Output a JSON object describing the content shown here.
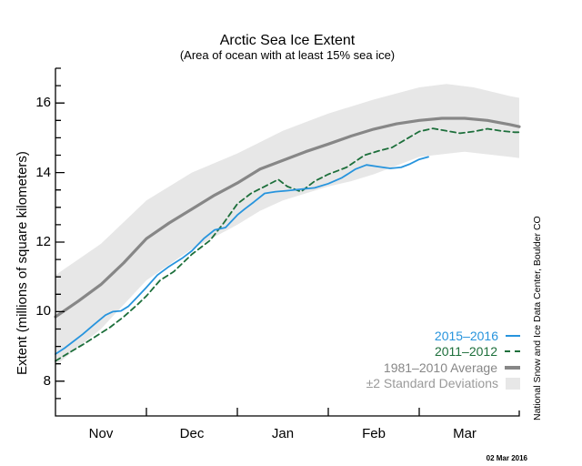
{
  "chart": {
    "title": "Arctic Sea Ice Extent",
    "subtitle": "(Area of ocean with at least 15% sea ice)",
    "y_label": "Extent (millions of square kilometers)",
    "credit": "National Snow and Ice Data Center, Boulder CO",
    "date_stamp": "02 Mar 2016"
  },
  "legend": {
    "items": [
      {
        "label": "2015–2016",
        "color": "#2794dd",
        "sample": "line"
      },
      {
        "label": "2011–2012",
        "color": "#1d6f3b",
        "sample": "dashes"
      },
      {
        "label": "1981–2010 Average",
        "color": "#878787",
        "sample": "thick"
      },
      {
        "label": "±2 Standard Deviations",
        "color": "#9a9a9a",
        "sample": "box"
      }
    ]
  },
  "chart_data": {
    "type": "line",
    "title": "Arctic Sea Ice Extent",
    "subtitle": "(Area of ocean with at least 15% sea ice)",
    "ylabel": "Extent (millions of square kilometers)",
    "ylim": [
      7,
      17
    ],
    "y_major_ticks": [
      8,
      10,
      12,
      14,
      16
    ],
    "y_minor_step": 0.5,
    "x_month_labels": [
      "Nov",
      "Dec",
      "Jan",
      "Feb",
      "Mar"
    ],
    "x_note": "x unit = months since Nov 1 2015 (0=Nov1, 1=Dec1, 2=Jan1, 3=Feb1, 4=Mar1)",
    "x_domain": [
      0,
      5.1
    ],
    "grid": false,
    "band": {
      "name": "±2 Standard Deviations",
      "color": "#e7e7e7",
      "upper": [
        [
          0,
          11.05
        ],
        [
          0.5,
          11.95
        ],
        [
          1,
          13.2
        ],
        [
          1.5,
          14.0
        ],
        [
          2,
          14.55
        ],
        [
          2.5,
          15.2
        ],
        [
          3,
          15.7
        ],
        [
          3.5,
          16.1
        ],
        [
          4,
          16.45
        ],
        [
          4.3,
          16.55
        ],
        [
          4.6,
          16.45
        ],
        [
          5,
          16.2
        ],
        [
          5.1,
          16.15
        ]
      ],
      "lower": [
        [
          0,
          8.45
        ],
        [
          0.5,
          9.5
        ],
        [
          1,
          10.9
        ],
        [
          1.5,
          11.8
        ],
        [
          2,
          12.5
        ],
        [
          2.25,
          12.9
        ],
        [
          2.5,
          13.2
        ],
        [
          2.75,
          13.4
        ],
        [
          3,
          13.6
        ],
        [
          3.25,
          13.75
        ],
        [
          3.5,
          13.95
        ],
        [
          3.75,
          14.2
        ],
        [
          4,
          14.45
        ],
        [
          4.5,
          14.6
        ],
        [
          5,
          14.45
        ],
        [
          5.1,
          14.42
        ]
      ]
    },
    "series": [
      {
        "name": "1981–2010 Average",
        "color": "#878787",
        "style": "solid",
        "width": 3.2,
        "points": [
          [
            0,
            9.85
          ],
          [
            0.25,
            10.3
          ],
          [
            0.5,
            10.78
          ],
          [
            0.75,
            11.4
          ],
          [
            1,
            12.1
          ],
          [
            1.25,
            12.55
          ],
          [
            1.5,
            12.95
          ],
          [
            1.75,
            13.35
          ],
          [
            2,
            13.7
          ],
          [
            2.25,
            14.1
          ],
          [
            2.5,
            14.35
          ],
          [
            2.75,
            14.6
          ],
          [
            3,
            14.82
          ],
          [
            3.25,
            15.05
          ],
          [
            3.5,
            15.25
          ],
          [
            3.75,
            15.4
          ],
          [
            4,
            15.5
          ],
          [
            4.25,
            15.56
          ],
          [
            4.5,
            15.56
          ],
          [
            4.75,
            15.5
          ],
          [
            5,
            15.38
          ],
          [
            5.1,
            15.32
          ]
        ]
      },
      {
        "name": "2011–2012",
        "color": "#1d6f3b",
        "style": "dashed",
        "width": 1.8,
        "points": [
          [
            0,
            8.58
          ],
          [
            0.15,
            8.82
          ],
          [
            0.3,
            9.05
          ],
          [
            0.45,
            9.3
          ],
          [
            0.6,
            9.55
          ],
          [
            0.75,
            9.85
          ],
          [
            0.9,
            10.2
          ],
          [
            1,
            10.45
          ],
          [
            1.15,
            10.9
          ],
          [
            1.3,
            11.15
          ],
          [
            1.5,
            11.65
          ],
          [
            1.7,
            12.05
          ],
          [
            1.85,
            12.55
          ],
          [
            2,
            13.1
          ],
          [
            2.15,
            13.4
          ],
          [
            2.3,
            13.6
          ],
          [
            2.45,
            13.8
          ],
          [
            2.55,
            13.6
          ],
          [
            2.7,
            13.45
          ],
          [
            2.85,
            13.75
          ],
          [
            3,
            13.95
          ],
          [
            3.2,
            14.15
          ],
          [
            3.4,
            14.5
          ],
          [
            3.55,
            14.62
          ],
          [
            3.7,
            14.72
          ],
          [
            3.85,
            14.95
          ],
          [
            4,
            15.18
          ],
          [
            4.15,
            15.27
          ],
          [
            4.3,
            15.2
          ],
          [
            4.45,
            15.13
          ],
          [
            4.6,
            15.18
          ],
          [
            4.75,
            15.26
          ],
          [
            4.9,
            15.2
          ],
          [
            5.05,
            15.16
          ],
          [
            5.1,
            15.16
          ]
        ]
      },
      {
        "name": "2015–2016",
        "color": "#2794dd",
        "style": "solid",
        "width": 1.8,
        "points": [
          [
            0,
            8.78
          ],
          [
            0.1,
            8.95
          ],
          [
            0.2,
            9.15
          ],
          [
            0.3,
            9.35
          ],
          [
            0.42,
            9.62
          ],
          [
            0.55,
            9.9
          ],
          [
            0.63,
            10.0
          ],
          [
            0.72,
            10.02
          ],
          [
            0.8,
            10.15
          ],
          [
            0.9,
            10.42
          ],
          [
            1,
            10.7
          ],
          [
            1.12,
            11.05
          ],
          [
            1.25,
            11.3
          ],
          [
            1.4,
            11.55
          ],
          [
            1.5,
            11.75
          ],
          [
            1.63,
            12.1
          ],
          [
            1.75,
            12.35
          ],
          [
            1.87,
            12.42
          ],
          [
            2,
            12.78
          ],
          [
            2.08,
            12.95
          ],
          [
            2.18,
            13.15
          ],
          [
            2.3,
            13.4
          ],
          [
            2.42,
            13.45
          ],
          [
            2.55,
            13.48
          ],
          [
            2.7,
            13.52
          ],
          [
            2.85,
            13.56
          ],
          [
            3,
            13.68
          ],
          [
            3.15,
            13.85
          ],
          [
            3.3,
            14.1
          ],
          [
            3.42,
            14.22
          ],
          [
            3.55,
            14.17
          ],
          [
            3.68,
            14.12
          ],
          [
            3.8,
            14.15
          ],
          [
            3.9,
            14.25
          ],
          [
            4,
            14.38
          ],
          [
            4.1,
            14.45
          ]
        ]
      }
    ]
  }
}
